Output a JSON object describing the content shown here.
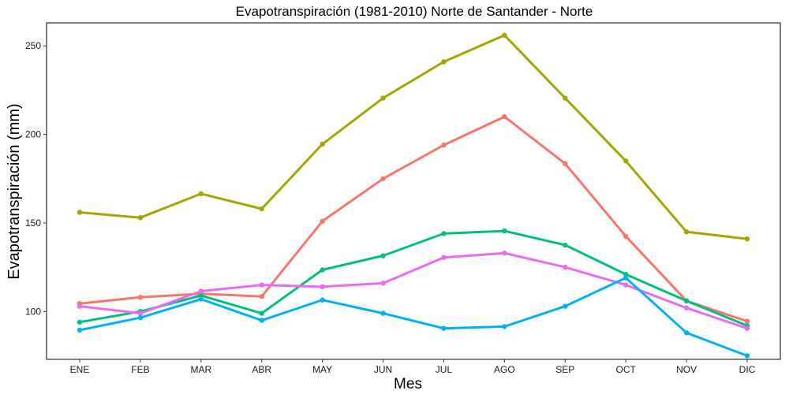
{
  "chart_data": {
    "type": "line",
    "title": "Evapotranspiración (1981-2010)  Norte de Santander - Norte",
    "xlabel": "Mes",
    "ylabel": "Evapotranspiración (mm)",
    "categories": [
      "ENE",
      "FEB",
      "MAR",
      "ABR",
      "MAY",
      "JUN",
      "JUL",
      "AGO",
      "SEP",
      "OCT",
      "NOV",
      "DIC"
    ],
    "ylim": [
      73,
      263
    ],
    "yticks": [
      100,
      150,
      200,
      250
    ],
    "grid": false,
    "legend": "none",
    "series": [
      {
        "color": "#a3a500",
        "values": [
          156,
          153,
          166.5,
          158,
          194.5,
          220.5,
          241,
          256,
          220.5,
          185,
          145,
          141
        ]
      },
      {
        "color": "#f8766d",
        "values": [
          104.5,
          108,
          110,
          108.5,
          151,
          175,
          194,
          210,
          183.5,
          142.5,
          106,
          94.5
        ]
      },
      {
        "color": "#00bf7d",
        "values": [
          94,
          100,
          109,
          99,
          123.5,
          131.5,
          144,
          145.5,
          137.5,
          121,
          106,
          92
        ]
      },
      {
        "color": "#e76bf3",
        "values": [
          103,
          99,
          111.5,
          115,
          114,
          116,
          130.5,
          133,
          125,
          115,
          102,
          90.5
        ]
      },
      {
        "color": "#00b0f6",
        "values": [
          89.5,
          96.5,
          107,
          95,
          106.5,
          99,
          90.5,
          91.5,
          103,
          119,
          88,
          75
        ]
      }
    ]
  }
}
